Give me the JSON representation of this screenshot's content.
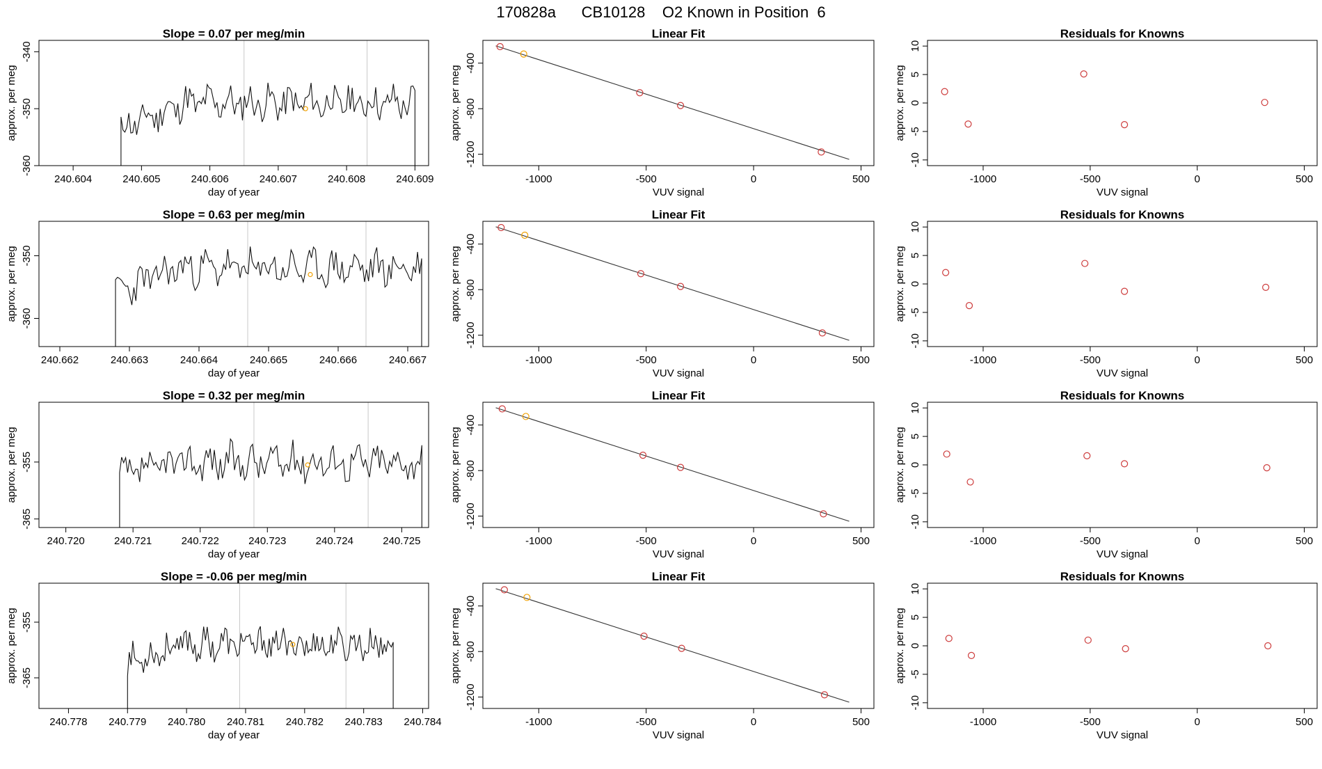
{
  "figure": {
    "title": "170828a      CB10128    O2 Known in Position  6"
  },
  "chart_data": [
    {
      "type": "line",
      "title": "Slope =  0.07  per meg/min",
      "xlabel": "day of year",
      "ylabel": "approx. per meg",
      "xlim": [
        240.6035,
        240.6092
      ],
      "ylim": [
        -360,
        -338
      ],
      "xticks": [
        240.604,
        240.605,
        240.606,
        240.607,
        240.608,
        240.609
      ],
      "xtick_labels": [
        "240.604",
        "240.605",
        "240.606",
        "240.607",
        "240.608",
        "240.609"
      ],
      "yticks": [
        -360,
        -350,
        -340
      ],
      "ytick_labels": [
        "-360",
        "-350",
        "-340"
      ],
      "vlines": [
        240.6065,
        240.6083
      ],
      "highlight": {
        "x": 240.6074,
        "y": -350
      },
      "trace": {
        "x_start": 240.6047,
        "x_end": 240.609,
        "n": 150,
        "base_start": -356,
        "base_end": -349,
        "plateau": 0.22,
        "amp": 2.6,
        "seed": 11,
        "edge_start": -362,
        "edge_end": -362
      }
    },
    {
      "type": "scatter",
      "title": "Linear Fit",
      "xlabel": "VUV signal",
      "ylabel": "approx. per meg",
      "xlim": [
        -1260,
        560
      ],
      "ylim": [
        -1300,
        -200
      ],
      "xticks": [
        -1000,
        -500,
        0,
        500
      ],
      "xtick_labels": [
        "-1000",
        "-500",
        "0",
        "500"
      ],
      "yticks": [
        -1200,
        -800,
        -400
      ],
      "ytick_labels": [
        "-1200",
        "-800",
        "-400"
      ],
      "points": [
        {
          "x": -1180,
          "y": -255
        },
        {
          "x": -1070,
          "y": -320
        },
        {
          "x": -530,
          "y": -660
        },
        {
          "x": -340,
          "y": -772
        },
        {
          "x": 315,
          "y": -1180
        }
      ],
      "highlight_index": 1,
      "fit_line": [
        {
          "x": -1200,
          "y": -248
        },
        {
          "x": 445,
          "y": -1245
        }
      ]
    },
    {
      "type": "scatter",
      "title": "Residuals for Knowns",
      "xlabel": "VUV signal",
      "ylabel": "approx. per meg",
      "xlim": [
        -1260,
        560
      ],
      "ylim": [
        -11,
        11
      ],
      "xticks": [
        -1000,
        -500,
        0,
        500
      ],
      "xtick_labels": [
        "-1000",
        "-500",
        "0",
        "500"
      ],
      "yticks": [
        -10,
        -5,
        0,
        5,
        10
      ],
      "ytick_labels": [
        "-10",
        "-5",
        "0",
        "5",
        "10"
      ],
      "points": [
        {
          "x": -1180,
          "y": 2.0
        },
        {
          "x": -1070,
          "y": -3.7
        },
        {
          "x": -530,
          "y": 5.1
        },
        {
          "x": -340,
          "y": -3.8
        },
        {
          "x": 315,
          "y": 0.1
        }
      ]
    },
    {
      "type": "line",
      "title": "Slope =  0.63  per meg/min",
      "xlabel": "day of year",
      "ylabel": "approx. per meg",
      "xlim": [
        240.6617,
        240.6673
      ],
      "ylim": [
        -364.5,
        -344.5
      ],
      "xticks": [
        240.662,
        240.663,
        240.664,
        240.665,
        240.666,
        240.667
      ],
      "xtick_labels": [
        "240.662",
        "240.663",
        "240.664",
        "240.665",
        "240.666",
        "240.667"
      ],
      "yticks": [
        -360,
        -350
      ],
      "ytick_labels": [
        "-360",
        "-350"
      ],
      "vlines": [
        240.6647,
        240.6664
      ],
      "highlight": {
        "x": 240.6656,
        "y": -353
      },
      "trace": {
        "x_start": 240.6628,
        "x_end": 240.6672,
        "n": 150,
        "base_start": -358,
        "base_end": -352,
        "plateau": 0.2,
        "amp": 2.4,
        "seed": 23,
        "edge_start": -366,
        "edge_end": -366
      }
    },
    {
      "type": "scatter",
      "title": "Linear Fit",
      "xlabel": "VUV signal",
      "ylabel": "approx. per meg",
      "xlim": [
        -1260,
        560
      ],
      "ylim": [
        -1300,
        -200
      ],
      "xticks": [
        -1000,
        -500,
        0,
        500
      ],
      "xtick_labels": [
        "-1000",
        "-500",
        "0",
        "500"
      ],
      "yticks": [
        -1200,
        -800,
        -400
      ],
      "ytick_labels": [
        "-1200",
        "-800",
        "-400"
      ],
      "points": [
        {
          "x": -1175,
          "y": -255
        },
        {
          "x": -1065,
          "y": -322
        },
        {
          "x": -525,
          "y": -660
        },
        {
          "x": -340,
          "y": -772
        },
        {
          "x": 320,
          "y": -1180
        }
      ],
      "highlight_index": 1,
      "fit_line": [
        {
          "x": -1200,
          "y": -248
        },
        {
          "x": 445,
          "y": -1245
        }
      ]
    },
    {
      "type": "scatter",
      "title": "Residuals for Knowns",
      "xlabel": "VUV signal",
      "ylabel": "approx. per meg",
      "xlim": [
        -1260,
        560
      ],
      "ylim": [
        -11,
        11
      ],
      "xticks": [
        -1000,
        -500,
        0,
        500
      ],
      "xtick_labels": [
        "-1000",
        "-500",
        "0",
        "500"
      ],
      "yticks": [
        -10,
        -5,
        0,
        5,
        10
      ],
      "ytick_labels": [
        "-10",
        "-5",
        "0",
        "5",
        "10"
      ],
      "points": [
        {
          "x": -1175,
          "y": 2.0
        },
        {
          "x": -1065,
          "y": -3.8
        },
        {
          "x": -525,
          "y": 3.6
        },
        {
          "x": -340,
          "y": -1.3
        },
        {
          "x": 320,
          "y": -0.6
        }
      ]
    },
    {
      "type": "line",
      "title": "Slope =  0.32  per meg/min",
      "xlabel": "day of year",
      "ylabel": "approx. per meg",
      "xlim": [
        240.7196,
        240.7254
      ],
      "ylim": [
        -366.5,
        -344.5
      ],
      "xticks": [
        240.72,
        240.721,
        240.722,
        240.723,
        240.724,
        240.725
      ],
      "xtick_labels": [
        "240.720",
        "240.721",
        "240.722",
        "240.723",
        "240.724",
        "240.725"
      ],
      "yticks": [
        -365,
        -355
      ],
      "ytick_labels": [
        "-365",
        "-355"
      ],
      "vlines": [
        240.7228,
        240.7245
      ],
      "highlight": {
        "x": 240.7236,
        "y": -355.5
      },
      "trace": {
        "x_start": 240.7208,
        "x_end": 240.7253,
        "n": 150,
        "base_start": -359,
        "base_end": -355,
        "plateau": 0.2,
        "amp": 2.7,
        "seed": 37,
        "edge_start": -368,
        "edge_end": -368
      }
    },
    {
      "type": "scatter",
      "title": "Linear Fit",
      "xlabel": "VUV signal",
      "ylabel": "approx. per meg",
      "xlim": [
        -1260,
        560
      ],
      "ylim": [
        -1300,
        -200
      ],
      "xticks": [
        -1000,
        -500,
        0,
        500
      ],
      "xtick_labels": [
        "-1000",
        "-500",
        "0",
        "500"
      ],
      "yticks": [
        -1200,
        -800,
        -400
      ],
      "ytick_labels": [
        "-1200",
        "-800",
        "-400"
      ],
      "points": [
        {
          "x": -1170,
          "y": -258
        },
        {
          "x": -1060,
          "y": -325
        },
        {
          "x": -515,
          "y": -665
        },
        {
          "x": -340,
          "y": -772
        },
        {
          "x": 325,
          "y": -1180
        }
      ],
      "highlight_index": 1,
      "fit_line": [
        {
          "x": -1200,
          "y": -248
        },
        {
          "x": 445,
          "y": -1245
        }
      ]
    },
    {
      "type": "scatter",
      "title": "Residuals for Knowns",
      "xlabel": "VUV signal",
      "ylabel": "approx. per meg",
      "xlim": [
        -1260,
        560
      ],
      "ylim": [
        -11,
        11
      ],
      "xticks": [
        -1000,
        -500,
        0,
        500
      ],
      "xtick_labels": [
        "-1000",
        "-500",
        "0",
        "500"
      ],
      "yticks": [
        -10,
        -5,
        0,
        5,
        10
      ],
      "ytick_labels": [
        "-10",
        "-5",
        "0",
        "5",
        "10"
      ],
      "points": [
        {
          "x": -1170,
          "y": 1.9
        },
        {
          "x": -1060,
          "y": -3.0
        },
        {
          "x": -515,
          "y": 1.6
        },
        {
          "x": -340,
          "y": 0.2
        },
        {
          "x": 325,
          "y": -0.5
        }
      ]
    },
    {
      "type": "line",
      "title": "Slope =  -0.06  per meg/min",
      "xlabel": "day of year",
      "ylabel": "approx. per meg",
      "xlim": [
        240.7775,
        240.7841
      ],
      "ylim": [
        -370.5,
        -348
      ],
      "xticks": [
        240.778,
        240.779,
        240.78,
        240.781,
        240.782,
        240.783,
        240.784
      ],
      "xtick_labels": [
        "240.778",
        "240.779",
        "240.780",
        "240.781",
        "240.782",
        "240.783",
        "240.784"
      ],
      "yticks": [
        -365,
        -355
      ],
      "ytick_labels": [
        "-365",
        "-355"
      ],
      "vlines": [
        240.7809,
        240.7827
      ],
      "highlight": {
        "x": 240.7818,
        "y": -359
      },
      "trace": {
        "x_start": 240.779,
        "x_end": 240.7835,
        "n": 150,
        "base_start": -364,
        "base_end": -359,
        "plateau": 0.2,
        "amp": 2.5,
        "seed": 53,
        "edge_start": -372,
        "edge_end": -372
      }
    },
    {
      "type": "scatter",
      "title": "Linear Fit",
      "xlabel": "VUV signal",
      "ylabel": "approx. per meg",
      "xlim": [
        -1260,
        560
      ],
      "ylim": [
        -1300,
        -200
      ],
      "xticks": [
        -1000,
        -500,
        0,
        500
      ],
      "xtick_labels": [
        "-1000",
        "-500",
        "0",
        "500"
      ],
      "yticks": [
        -1200,
        -800,
        -400
      ],
      "ytick_labels": [
        "-1200",
        "-800",
        "-400"
      ],
      "points": [
        {
          "x": -1160,
          "y": -258
        },
        {
          "x": -1055,
          "y": -325
        },
        {
          "x": -510,
          "y": -665
        },
        {
          "x": -335,
          "y": -772
        },
        {
          "x": 330,
          "y": -1180
        }
      ],
      "highlight_index": 1,
      "fit_line": [
        {
          "x": -1200,
          "y": -248
        },
        {
          "x": 445,
          "y": -1245
        }
      ]
    },
    {
      "type": "scatter",
      "title": "Residuals for Knowns",
      "xlabel": "VUV signal",
      "ylabel": "approx. per meg",
      "xlim": [
        -1260,
        560
      ],
      "ylim": [
        -11,
        11
      ],
      "xticks": [
        -1000,
        -500,
        0,
        500
      ],
      "xtick_labels": [
        "-1000",
        "-500",
        "0",
        "500"
      ],
      "yticks": [
        -10,
        -5,
        0,
        5,
        10
      ],
      "ytick_labels": [
        "-10",
        "-5",
        "0",
        "5",
        "10"
      ],
      "points": [
        {
          "x": -1160,
          "y": 1.3
        },
        {
          "x": -1055,
          "y": -1.7
        },
        {
          "x": -510,
          "y": 1.0
        },
        {
          "x": -335,
          "y": -0.5
        },
        {
          "x": 330,
          "y": 0.0
        }
      ]
    }
  ],
  "colors": {
    "axes": "#000000",
    "trace": "#111111",
    "vline": "#c8c8c8",
    "point": "#cd3c3c",
    "highlight": "#f0a000",
    "fit_line": "#333333"
  }
}
